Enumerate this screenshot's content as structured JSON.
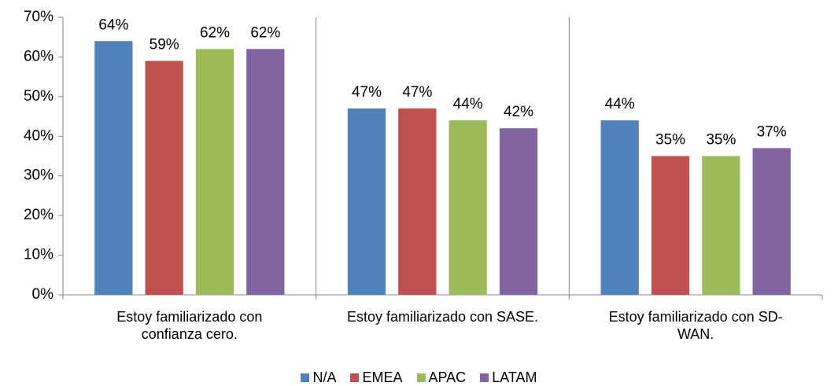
{
  "chart_data": {
    "type": "bar",
    "categories": [
      "Estoy familiarizado con confianza cero.",
      "Estoy familiarizado con SASE.",
      "Estoy familiarizado con SD-WAN."
    ],
    "series": [
      {
        "name": "N/A",
        "color": "#4f81bd",
        "values": [
          64,
          47,
          44
        ],
        "value_labels": [
          "64%",
          "47%",
          "44%"
        ]
      },
      {
        "name": "EMEA",
        "color": "#c0504d",
        "values": [
          59,
          47,
          35
        ],
        "value_labels": [
          "59%",
          "47%",
          "35%"
        ]
      },
      {
        "name": "APAC",
        "color": "#9bbb59",
        "values": [
          62,
          44,
          35
        ],
        "value_labels": [
          "62%",
          "44%",
          "35%"
        ]
      },
      {
        "name": "LATAM",
        "color": "#8064a2",
        "values": [
          62,
          42,
          37
        ],
        "value_labels": [
          "62%",
          "42%",
          "37%"
        ]
      }
    ],
    "ylim": [
      0,
      70
    ],
    "yticks": [
      {
        "value": 0,
        "label": "0%"
      },
      {
        "value": 10,
        "label": "10%"
      },
      {
        "value": 20,
        "label": "20%"
      },
      {
        "value": 30,
        "label": "30%"
      },
      {
        "value": 40,
        "label": "40%"
      },
      {
        "value": 50,
        "label": "50%"
      },
      {
        "value": 60,
        "label": "60%"
      },
      {
        "value": 70,
        "label": "70%"
      }
    ],
    "grid": false,
    "legend": "bottom"
  }
}
